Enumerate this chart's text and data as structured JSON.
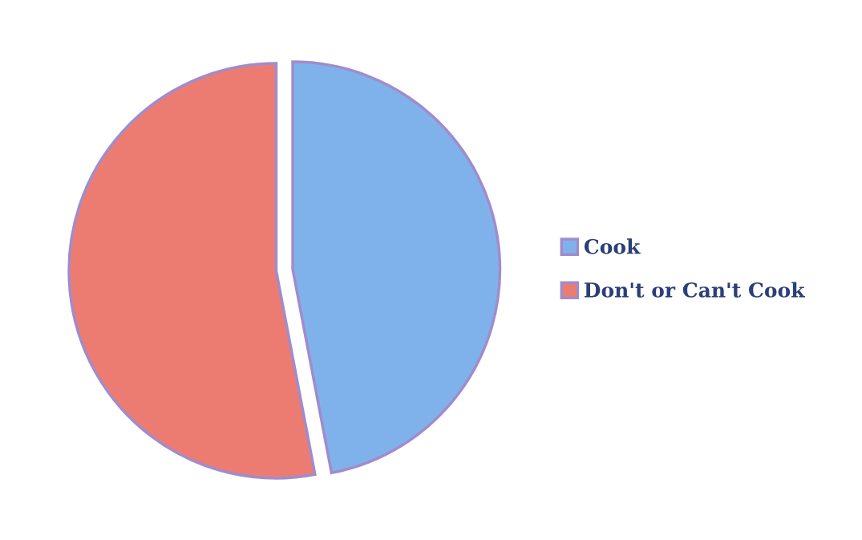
{
  "chart_data": {
    "type": "pie",
    "categories": [
      "Cook",
      "Don't or Can't Cook"
    ],
    "values": [
      47,
      53
    ],
    "colors": [
      "#7fb2ea",
      "#ec7c72"
    ],
    "legend": "right"
  }
}
